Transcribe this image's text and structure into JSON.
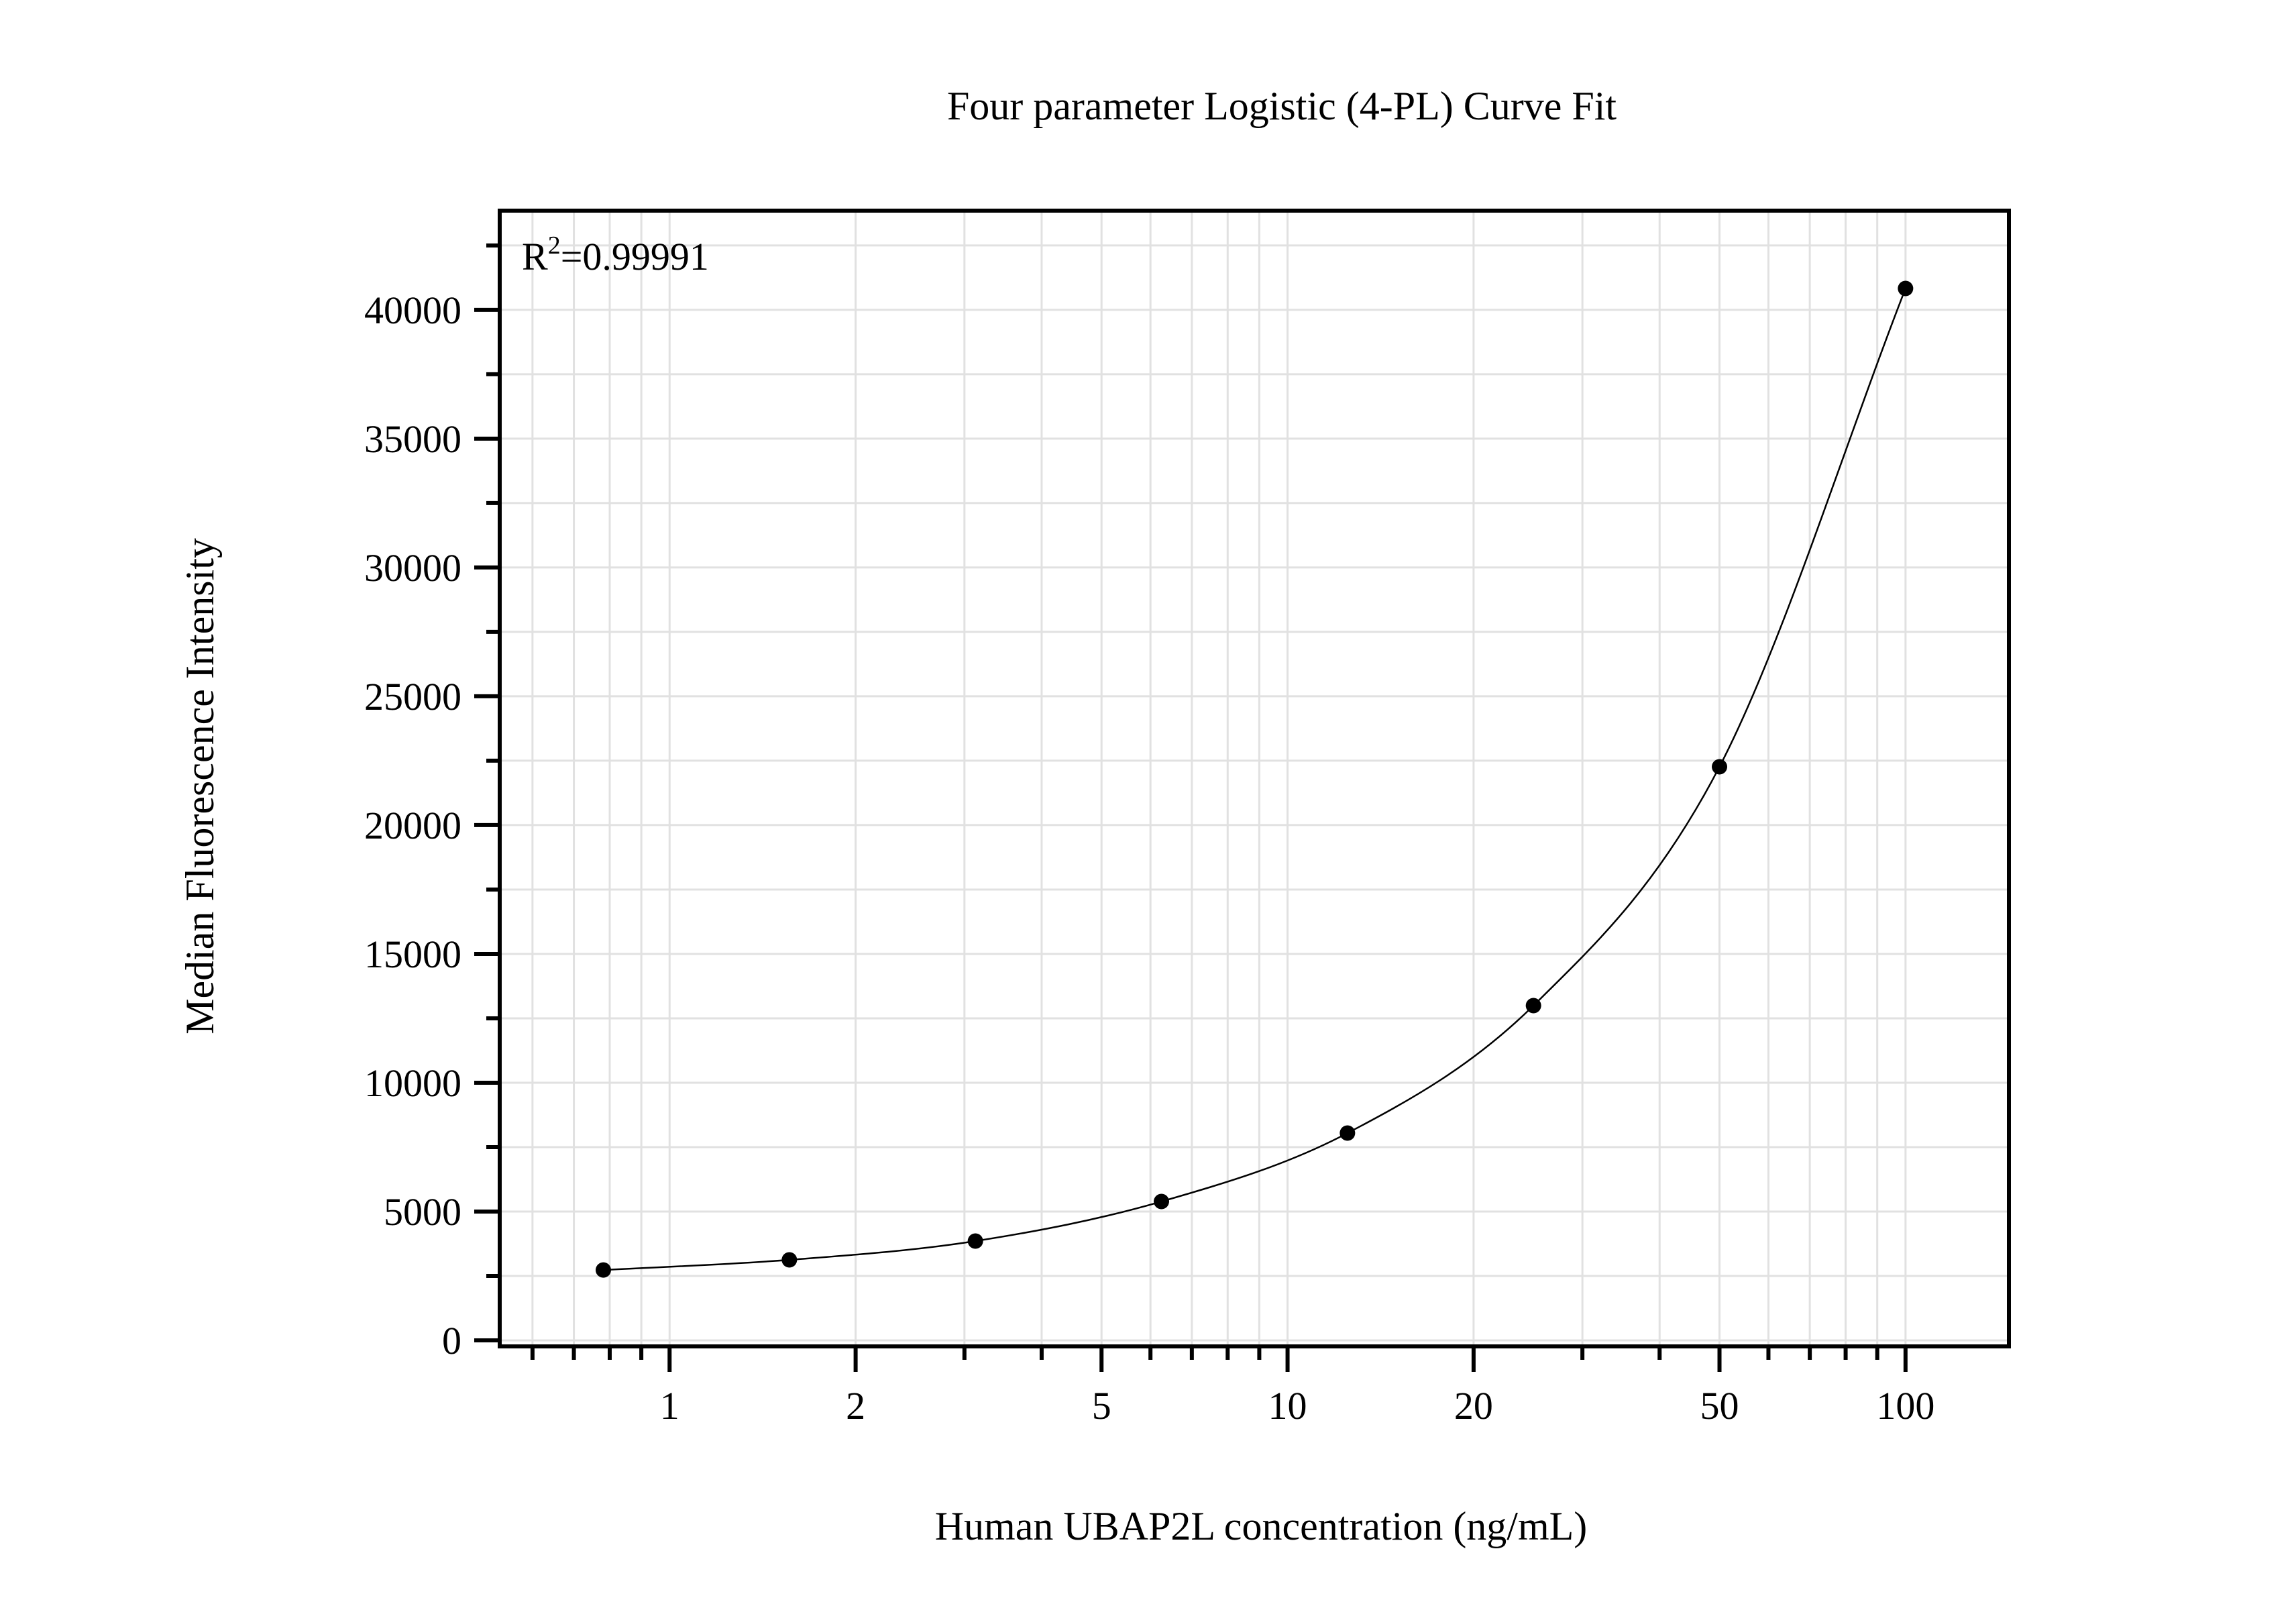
{
  "chart_data": {
    "type": "scatter",
    "title": "Four parameter Logistic (4-PL) Curve Fit",
    "xlabel": "Human UBAP2L concentration (ng/mL)",
    "ylabel": "Median Fluorescence Intensity",
    "xscale": "log",
    "xlim": [
      0.531,
      147
    ],
    "ylim": [
      -234,
      43850
    ],
    "grid": true,
    "legend": null,
    "x_ticks": [
      1,
      2,
      5,
      10,
      20,
      50,
      100
    ],
    "x_tick_labels": [
      "1",
      "2",
      "5",
      "10",
      "20",
      "50",
      "100"
    ],
    "y_ticks": [
      0,
      5000,
      10000,
      15000,
      20000,
      25000,
      30000,
      35000,
      40000
    ],
    "y_tick_labels": [
      "0",
      "5000",
      "10000",
      "15000",
      "20000",
      "25000",
      "30000",
      "35000",
      "40000"
    ],
    "annotations": [
      {
        "text": "R2=0.99991",
        "base": "R",
        "sup": "2",
        "rest": "=0.99991",
        "position": "top-left"
      }
    ],
    "series": [
      {
        "name": "Standards",
        "kind": "points",
        "color": "#000000",
        "x": [
          0.78125,
          1.5625,
          3.125,
          6.25,
          12.5,
          25,
          50,
          100
        ],
        "y": [
          2730,
          3125,
          3855,
          5390,
          8045,
          12995,
          22265,
          40830
        ]
      },
      {
        "name": "4-PL fit",
        "kind": "line",
        "color": "#000000"
      }
    ]
  },
  "labels": {
    "title": "Four parameter Logistic (4-PL) Curve Fit",
    "xlabel": "Human UBAP2L concentration (ng/mL)",
    "ylabel": "Median Fluorescence Intensity",
    "r2_base": "R",
    "r2_sup": "2",
    "r2_rest": "=0.99991"
  },
  "colors": {
    "axis": "#000000",
    "grid": "#e1e1e1",
    "points": "#000000",
    "curve": "#000000",
    "background": "#ffffff"
  }
}
